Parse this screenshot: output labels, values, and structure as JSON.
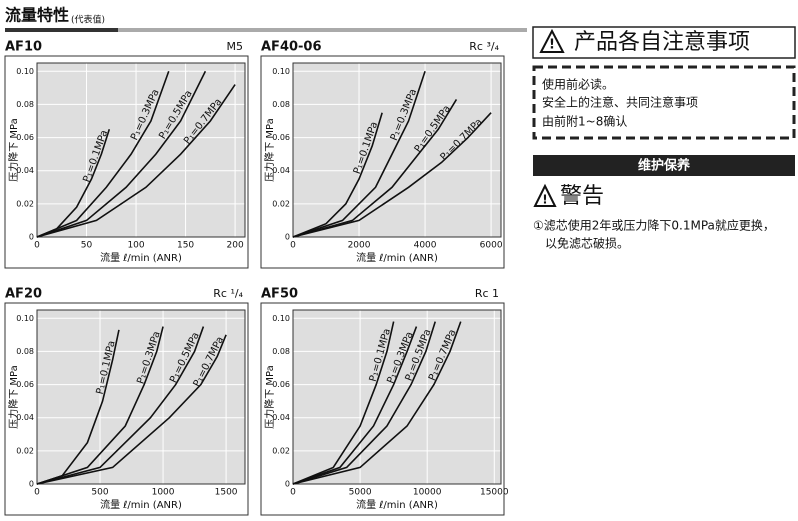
{
  "header": {
    "title": "流量特性",
    "subtitle": "(代表值)"
  },
  "notice": {
    "title": "产品各自注意事项",
    "lines": [
      "使用前必读。",
      "安全上的注意、共同注意事项",
      "由前附1~8确认"
    ]
  },
  "maintenance": {
    "title": "维护保养",
    "warning": "警告",
    "notes": [
      "①滤芯使用2年或压力降下0.1MPa就应更换，",
      "以免滤芯破损。"
    ]
  },
  "chart_data": [
    {
      "type": "line",
      "title": "AF10",
      "subtitle": "M5",
      "x_label": "流量 ℓ/min (ANR)",
      "y_label": "压力降下 MPa",
      "xlim": [
        0,
        210
      ],
      "xticks": [
        0,
        50,
        100,
        150,
        200
      ],
      "ylim": [
        0,
        0.105
      ],
      "yticks": [
        0,
        0.02,
        0.04,
        0.06,
        0.08,
        {
          "value": 0.1,
          "label": "0.10"
        }
      ],
      "grid": true,
      "series": [
        {
          "name": "P₁=0.1MPa",
          "color": "#111",
          "x": [
            0,
            20,
            40,
            55,
            65,
            73
          ],
          "values": [
            0,
            0.005,
            0.018,
            0.035,
            0.05,
            0.065
          ]
        },
        {
          "name": "P₁=0.3MPa",
          "color": "#111",
          "x": [
            0,
            40,
            70,
            95,
            115,
            133
          ],
          "values": [
            0,
            0.01,
            0.03,
            0.05,
            0.07,
            0.1
          ]
        },
        {
          "name": "P₁=0.5MPa",
          "color": "#111",
          "x": [
            0,
            50,
            90,
            120,
            145,
            170
          ],
          "values": [
            0,
            0.01,
            0.03,
            0.05,
            0.07,
            0.1
          ]
        },
        {
          "name": "P₁=0.7MPa",
          "color": "#111",
          "x": [
            0,
            60,
            110,
            145,
            175,
            200
          ],
          "values": [
            0,
            0.01,
            0.03,
            0.05,
            0.07,
            0.092
          ]
        }
      ]
    },
    {
      "type": "line",
      "title": "AF40-06",
      "subtitle": "Rc ³/₄",
      "x_label": "流量 ℓ/min (ANR)",
      "y_label": "压力降下 MPa",
      "xlim": [
        0,
        6300
      ],
      "xticks": [
        0,
        2000,
        4000,
        6000
      ],
      "ylim": [
        0,
        0.105
      ],
      "yticks": [
        0,
        0.02,
        0.04,
        0.06,
        0.08,
        {
          "value": 0.1,
          "label": "0.10"
        }
      ],
      "grid": true,
      "series": [
        {
          "name": "P₁=0.1MPa",
          "color": "#111",
          "x": [
            0,
            1000,
            1600,
            2000,
            2400,
            2700
          ],
          "values": [
            0,
            0.008,
            0.02,
            0.035,
            0.055,
            0.075
          ]
        },
        {
          "name": "P₁=0.3MPa",
          "color": "#111",
          "x": [
            0,
            1500,
            2500,
            3000,
            3500,
            4000
          ],
          "values": [
            0,
            0.01,
            0.03,
            0.05,
            0.07,
            0.1
          ]
        },
        {
          "name": "P₁=0.5MPa",
          "color": "#111",
          "x": [
            0,
            1800,
            3000,
            3800,
            4400,
            4950
          ],
          "values": [
            0,
            0.01,
            0.03,
            0.05,
            0.065,
            0.083
          ]
        },
        {
          "name": "P₁=0.7MPa",
          "color": "#111",
          "x": [
            0,
            2000,
            3500,
            4500,
            5300,
            6000
          ],
          "values": [
            0,
            0.01,
            0.03,
            0.045,
            0.06,
            0.075
          ]
        }
      ]
    },
    {
      "type": "line",
      "title": "AF20",
      "subtitle": "Rc ¹/₄",
      "x_label": "流量 ℓ/min (ANR)",
      "y_label": "压力降下 MPa",
      "xlim": [
        0,
        1650
      ],
      "xticks": [
        0,
        500,
        1000,
        1500
      ],
      "ylim": [
        0,
        0.105
      ],
      "yticks": [
        0,
        0.02,
        0.04,
        0.06,
        0.08,
        {
          "value": 0.1,
          "label": "0.10"
        }
      ],
      "grid": true,
      "series": [
        {
          "name": "P₁=0.1MPa",
          "color": "#111",
          "x": [
            0,
            200,
            400,
            520,
            600,
            650
          ],
          "values": [
            0,
            0.005,
            0.025,
            0.05,
            0.075,
            0.093
          ]
        },
        {
          "name": "P₁=0.3MPa",
          "color": "#111",
          "x": [
            0,
            400,
            700,
            850,
            950,
            1000
          ],
          "values": [
            0,
            0.01,
            0.035,
            0.06,
            0.08,
            0.095
          ]
        },
        {
          "name": "P₁=0.5MPa",
          "color": "#111",
          "x": [
            0,
            500,
            900,
            1100,
            1250,
            1320
          ],
          "values": [
            0,
            0.01,
            0.04,
            0.06,
            0.08,
            0.095
          ]
        },
        {
          "name": "P₁=0.7MPa",
          "color": "#111",
          "x": [
            0,
            600,
            1050,
            1300,
            1430,
            1500
          ],
          "values": [
            0,
            0.01,
            0.04,
            0.06,
            0.077,
            0.09
          ]
        }
      ]
    },
    {
      "type": "line",
      "title": "AF50",
      "subtitle": "Rc 1",
      "x_label": "流量 ℓ/min (ANR)",
      "y_label": "压力降下 MPa",
      "xlim": [
        0,
        15500
      ],
      "xticks": [
        0,
        5000,
        10000,
        15000
      ],
      "ylim": [
        0,
        0.105
      ],
      "yticks": [
        0,
        0.02,
        0.04,
        0.06,
        0.08,
        {
          "value": 0.1,
          "label": "0.10"
        }
      ],
      "grid": true,
      "series": [
        {
          "name": "P₁=0.1MPa",
          "color": "#111",
          "x": [
            0,
            3000,
            5000,
            6200,
            7000,
            7500
          ],
          "values": [
            0,
            0.01,
            0.035,
            0.06,
            0.08,
            0.098
          ]
        },
        {
          "name": "P₁=0.3MPa",
          "color": "#111",
          "x": [
            0,
            3500,
            6000,
            7500,
            8500,
            9200
          ],
          "values": [
            0,
            0.01,
            0.035,
            0.06,
            0.08,
            0.095
          ]
        },
        {
          "name": "P₁=0.5MPa",
          "color": "#111",
          "x": [
            0,
            4000,
            7000,
            8800,
            9900,
            10600
          ],
          "values": [
            0,
            0.01,
            0.035,
            0.06,
            0.08,
            0.098
          ]
        },
        {
          "name": "P₁=0.7MPa",
          "color": "#111",
          "x": [
            0,
            5000,
            8500,
            10500,
            11700,
            12500
          ],
          "values": [
            0,
            0.01,
            0.035,
            0.06,
            0.08,
            0.098
          ]
        }
      ]
    }
  ]
}
